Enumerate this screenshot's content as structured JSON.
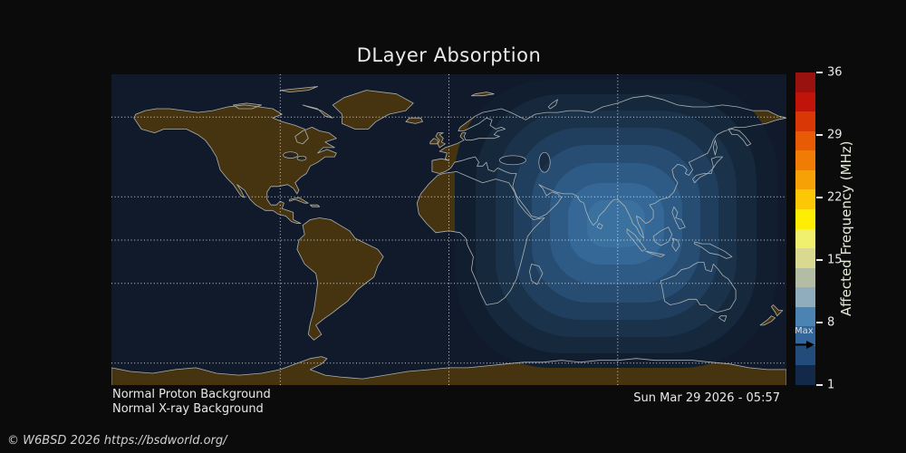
{
  "title": "DLayer Absorption",
  "footer": {
    "proton_status": "Normal Proton Background",
    "xray_status": "Normal X-ray Background",
    "timestamp": "Sun Mar 29 2026 - 05:57",
    "copyright": "© W6BSD 2026 https://bsdworld.org/"
  },
  "colorbar": {
    "axis_label": "Affected Frequency (MHz)",
    "tick_labels": [
      "36",
      "29",
      "22",
      "15",
      "8",
      "1"
    ],
    "tick_min": 1,
    "tick_max": 36,
    "max_marker_label": "Max",
    "segment_colors_top_to_bottom": [
      "#9a1210",
      "#c01309",
      "#d93706",
      "#e75b04",
      "#f07c05",
      "#f6a105",
      "#fcc705",
      "#fdee03",
      "#f0ef6e",
      "#d9da90",
      "#b3bda4",
      "#8fadbd",
      "#4b84b2",
      "#33679b",
      "#224c7a",
      "#12294a"
    ]
  },
  "map": {
    "ocean_color": "#101a2b",
    "land_color": "#463310",
    "coastline_color": "#b3b8b8",
    "gridline_color": "#f0f0f0",
    "absorption_ring_colors_outer_to_inner": [
      "#111e30",
      "#15283c",
      "#1a334b",
      "#203f5e",
      "#274d72",
      "#2e5b86",
      "#356896",
      "#3b719f"
    ]
  }
}
